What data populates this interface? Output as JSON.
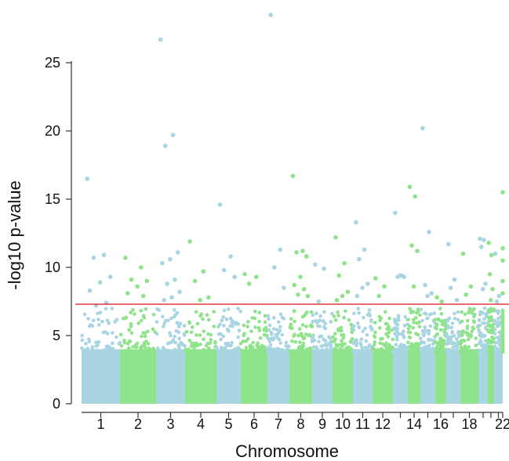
{
  "chart_data": {
    "type": "scatter",
    "subtype": "manhattan",
    "title": "",
    "xlabel": "Chromosome",
    "ylabel": "-log10 p-value",
    "ylim": [
      0,
      28.5
    ],
    "yticks": [
      0,
      5,
      10,
      15,
      20,
      25
    ],
    "x_tick_labels": [
      "1",
      "2",
      "3",
      "4",
      "5",
      "6",
      "7",
      "8",
      "9",
      "10",
      "11",
      "12",
      "14",
      "16",
      "18",
      "22"
    ],
    "threshold": {
      "value": 7.3,
      "color": "#e0383c"
    },
    "colors": {
      "odd": "#a9d5e3",
      "even": "#8fe38a",
      "threshold": "#e0383c",
      "axis": "#333333"
    },
    "grid": false,
    "legend": "none",
    "chromosomes": [
      {
        "chr": "1",
        "points": [
          16.5,
          10.9,
          10.7,
          9.3,
          8.9,
          8.3,
          7.4,
          7.2
        ]
      },
      {
        "chr": "2",
        "points": [
          10.7,
          10.0,
          9.1,
          9.0,
          8.6,
          8.1,
          7.9
        ]
      },
      {
        "chr": "3",
        "points": [
          26.7,
          19.7,
          18.9,
          11.1,
          10.6,
          10.3,
          9.1,
          8.8,
          8.2,
          7.8,
          7.6
        ]
      },
      {
        "chr": "4",
        "points": [
          11.9,
          9.7,
          9.0,
          7.8,
          7.6
        ]
      },
      {
        "chr": "5",
        "points": [
          14.6,
          10.8,
          9.8,
          9.3
        ]
      },
      {
        "chr": "6",
        "points": [
          9.5,
          9.3,
          8.8
        ]
      },
      {
        "chr": "7",
        "points": [
          28.5,
          11.3,
          10.0,
          8.5
        ]
      },
      {
        "chr": "8",
        "points": [
          16.7,
          11.2,
          11.1,
          10.8,
          9.3,
          8.7,
          8.4,
          8.0,
          7.9
        ]
      },
      {
        "chr": "9",
        "points": [
          10.2,
          9.9,
          7.5
        ]
      },
      {
        "chr": "10",
        "points": [
          12.2,
          10.3,
          9.4,
          8.2,
          7.9,
          7.6
        ]
      },
      {
        "chr": "11",
        "points": [
          13.3,
          11.3,
          10.6,
          8.8,
          8.5,
          7.9
        ]
      },
      {
        "chr": "12",
        "points": [
          9.2,
          8.6,
          7.9
        ]
      },
      {
        "chr": "13",
        "points": [
          14.0,
          9.4,
          9.3,
          9.3,
          9.4
        ]
      },
      {
        "chr": "14",
        "points": [
          15.9,
          15.2,
          11.6,
          11.2,
          8.6
        ]
      },
      {
        "chr": "15",
        "points": [
          20.2,
          12.6,
          8.7,
          8.1,
          7.9
        ]
      },
      {
        "chr": "16",
        "points": [
          7.8,
          7.5
        ]
      },
      {
        "chr": "17",
        "points": [
          11.7,
          9.1,
          8.5,
          7.6
        ]
      },
      {
        "chr": "18",
        "points": [
          11.0,
          8.6,
          8.0
        ]
      },
      {
        "chr": "19",
        "points": [
          12.1,
          12.0,
          11.5,
          8.8,
          8.4
        ]
      },
      {
        "chr": "20",
        "points": [
          11.8,
          10.9,
          9.5,
          8.4,
          7.6
        ]
      },
      {
        "chr": "21",
        "points": [
          11.0,
          7.9,
          7.5
        ]
      },
      {
        "chr": "22",
        "points": [
          15.5,
          11.4,
          10.5,
          9.0,
          8.1
        ]
      }
    ]
  }
}
